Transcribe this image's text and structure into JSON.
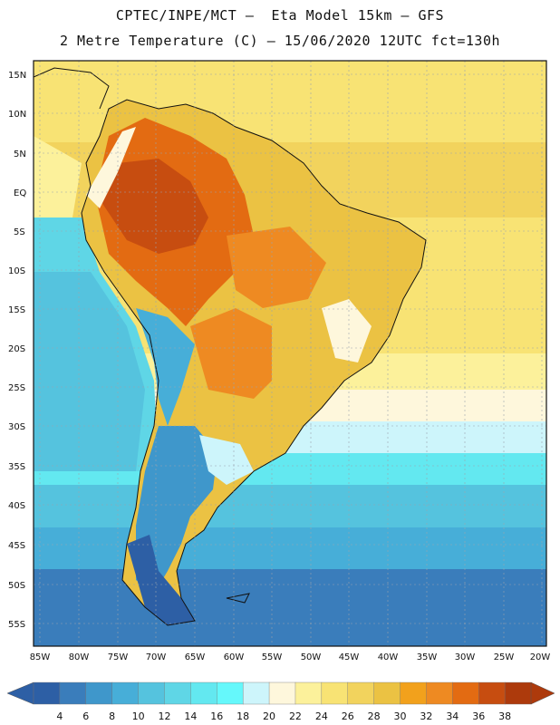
{
  "header": {
    "line1": "CPTEC/INPE/MCT –  Eta Model 15km – GFS",
    "line2": "2 Metre Temperature (C) – 15/06/2020 12UTC fct=130h"
  },
  "map": {
    "lat_labels": [
      "15N",
      "10N",
      "5N",
      "EQ",
      "5S",
      "10S",
      "15S",
      "20S",
      "25S",
      "30S",
      "35S",
      "40S",
      "45S",
      "50S",
      "55S"
    ],
    "lon_labels": [
      "85W",
      "80W",
      "75W",
      "70W",
      "65W",
      "60W",
      "55W",
      "50W",
      "45W",
      "40W",
      "35W",
      "30W",
      "25W",
      "20W"
    ]
  },
  "colorbar": {
    "ticks": [
      "4",
      "6",
      "8",
      "10",
      "12",
      "14",
      "16",
      "18",
      "20",
      "22",
      "24",
      "26",
      "28",
      "30",
      "32",
      "34",
      "36",
      "38"
    ],
    "colors": [
      "#2d5fa5",
      "#3a7dbb",
      "#3f97cb",
      "#47aed8",
      "#55c3de",
      "#5fd6e6",
      "#63e8f0",
      "#65f8fb",
      "#cdf5fb",
      "#fef7dc",
      "#fcf19b",
      "#f8e374",
      "#f2d35d",
      "#ebc243",
      "#f2a11c",
      "#ee8a22",
      "#e36b12",
      "#c74d10",
      "#ad3a0c"
    ]
  }
}
